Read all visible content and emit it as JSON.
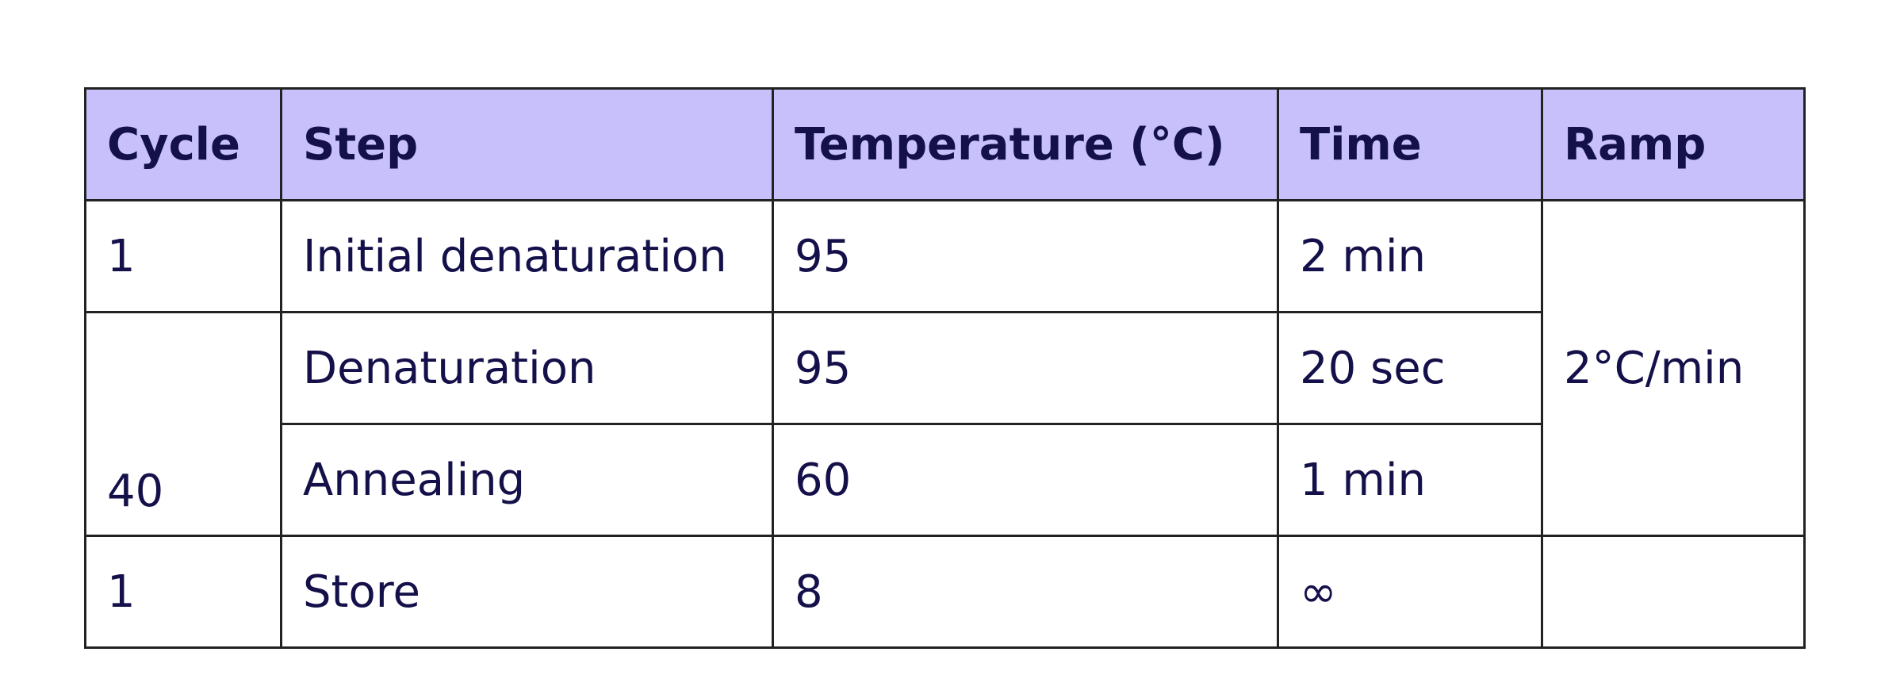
{
  "table": {
    "header": [
      "Cycle",
      "Step",
      "Temperature (°C)",
      "Time",
      "Ramp"
    ],
    "rows": [
      [
        "1",
        "Initial denaturation",
        "95",
        "2 min",
        "2°C/min"
      ],
      [
        "40",
        "Denaturation",
        "95",
        "20 sec"
      ],
      [
        "Annealing",
        "60",
        "1 min"
      ],
      [
        "1",
        "Store",
        "8",
        "∞"
      ]
    ]
  }
}
